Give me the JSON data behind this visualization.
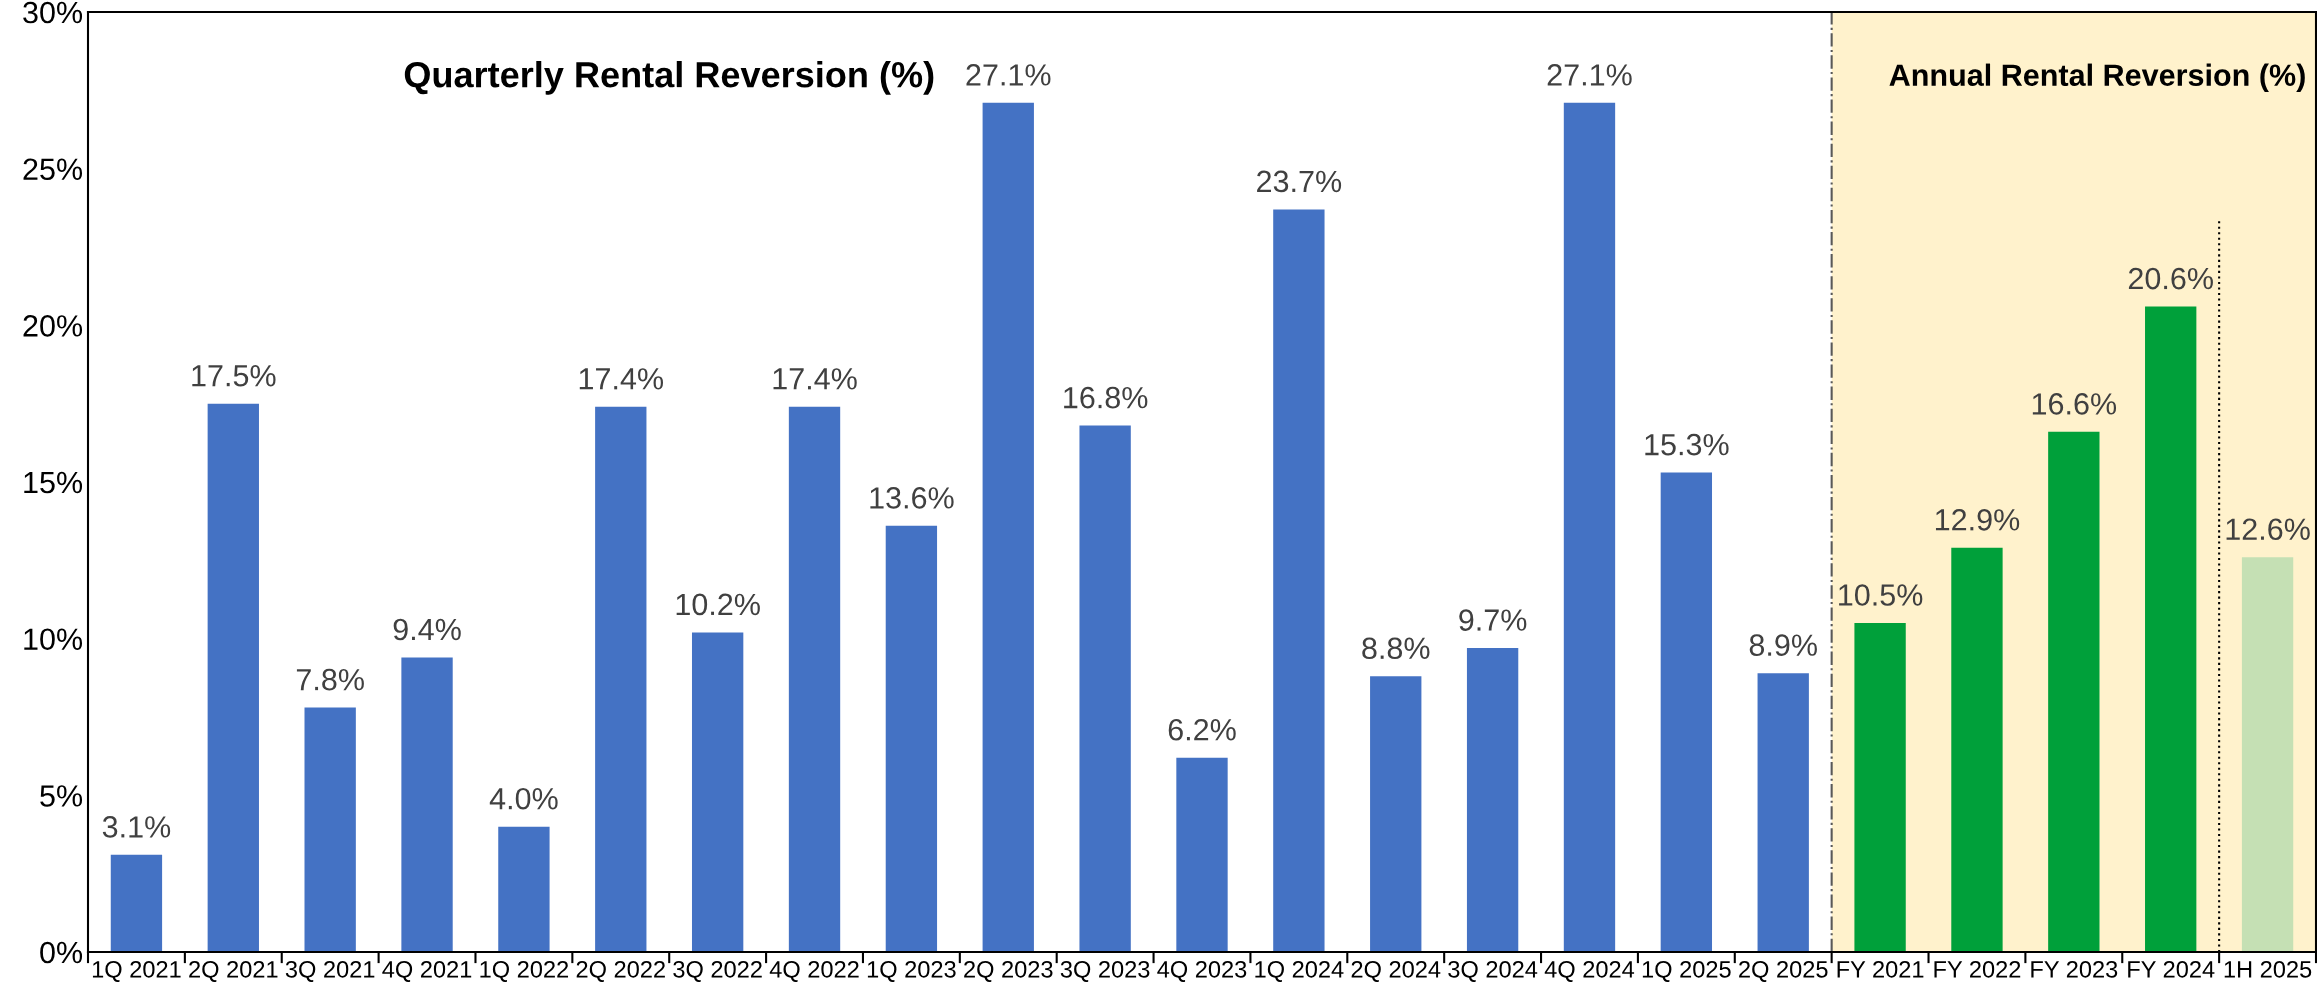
{
  "chart_data": {
    "type": "bar",
    "categories": [
      "1Q 2021",
      "2Q 2021",
      "3Q 2021",
      "4Q 2021",
      "1Q 2022",
      "2Q 2022",
      "3Q 2022",
      "4Q 2022",
      "1Q 2023",
      "2Q 2023",
      "3Q 2023",
      "4Q 2023",
      "1Q 2024",
      "2Q 2024",
      "3Q 2024",
      "4Q 2024",
      "1Q 2025",
      "2Q 2025",
      "FY 2021",
      "FY 2022",
      "FY 2023",
      "FY 2024",
      "1H 2025"
    ],
    "values": [
      3.1,
      17.5,
      7.8,
      9.4,
      4.0,
      17.4,
      10.2,
      17.4,
      13.6,
      27.1,
      16.8,
      6.2,
      23.7,
      8.8,
      9.7,
      27.1,
      15.3,
      8.9,
      10.5,
      12.9,
      16.6,
      20.6,
      12.6
    ],
    "colors": [
      "#4472c4",
      "#4472c4",
      "#4472c4",
      "#4472c4",
      "#4472c4",
      "#4472c4",
      "#4472c4",
      "#4472c4",
      "#4472c4",
      "#4472c4",
      "#4472c4",
      "#4472c4",
      "#4472c4",
      "#4472c4",
      "#4472c4",
      "#4472c4",
      "#4472c4",
      "#4472c4",
      "#00a03a",
      "#00a03a",
      "#00a03a",
      "#00a03a",
      "#c5e0b4"
    ],
    "value_labels": [
      "3.1%",
      "17.5%",
      "7.8%",
      "9.4%",
      "4.0%",
      "17.4%",
      "10.2%",
      "17.4%",
      "13.6%",
      "27.1%",
      "16.8%",
      "6.2%",
      "23.7%",
      "8.8%",
      "9.7%",
      "27.1%",
      "15.3%",
      "8.9%",
      "10.5%",
      "12.9%",
      "16.6%",
      "20.6%",
      "12.6%"
    ],
    "ylim": [
      0,
      30
    ],
    "yticks": [
      {
        "value": 0,
        "label": "0%"
      },
      {
        "value": 5,
        "label": "5%"
      },
      {
        "value": 10,
        "label": "10%"
      },
      {
        "value": 15,
        "label": "15%"
      },
      {
        "value": 20,
        "label": "20%"
      },
      {
        "value": 25,
        "label": "25%"
      },
      {
        "value": 30,
        "label": "30%"
      }
    ],
    "grid": false,
    "legend": false,
    "bands": [
      {
        "axis": "x",
        "from": "FY 2021",
        "to": "1H 2025",
        "color": "#fff2cc"
      }
    ],
    "ref_lines": [
      {
        "axis": "x",
        "value": "FY 2021",
        "line_style": "dashdot",
        "color": "#595959"
      },
      {
        "axis": "x",
        "value": "1H 2025",
        "line_style": "dotted",
        "color": "#000000"
      }
    ],
    "annotations": [
      "Quarterly Rental Reversion (%)",
      "Annual Rental Reversion (%)"
    ]
  }
}
